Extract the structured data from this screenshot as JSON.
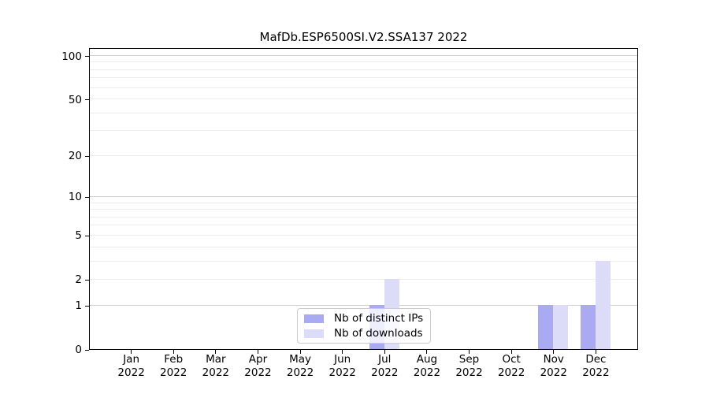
{
  "chart_data": {
    "type": "bar",
    "title": "MafDb.ESP6500SI.V2.SSA137 2022",
    "categories": [
      "Jan",
      "Feb",
      "Mar",
      "Apr",
      "May",
      "Jun",
      "Jul",
      "Aug",
      "Sep",
      "Oct",
      "Nov",
      "Dec"
    ],
    "category_year": "2022",
    "series": [
      {
        "name": "Nb of distinct IPs",
        "color": "#aaaaf2",
        "values": [
          0,
          0,
          0,
          0,
          0,
          0,
          1,
          0,
          0,
          0,
          1,
          1
        ]
      },
      {
        "name": "Nb of downloads",
        "color": "#dcdcf8",
        "values": [
          0,
          0,
          0,
          0,
          0,
          0,
          2,
          0,
          0,
          0,
          1,
          3
        ]
      }
    ],
    "y_scale": "log1p",
    "y_ticks": [
      0,
      1,
      2,
      5,
      10,
      20,
      50,
      100
    ],
    "ylim": [
      0,
      115
    ],
    "grid": {
      "major_values": [
        1,
        10,
        100
      ],
      "minor_values": [
        2,
        3,
        4,
        5,
        6,
        7,
        8,
        9,
        20,
        30,
        40,
        50,
        60,
        70,
        80,
        90
      ]
    },
    "legend_position": "lower-center",
    "legend_entries": [
      "Nb of distinct IPs",
      "Nb of downloads"
    ]
  },
  "colors": {
    "major_grid": "#d0d0d0",
    "minor_grid": "#ededed",
    "spine": "#000000",
    "legend_border": "#cccccc",
    "background": "#ffffff"
  }
}
